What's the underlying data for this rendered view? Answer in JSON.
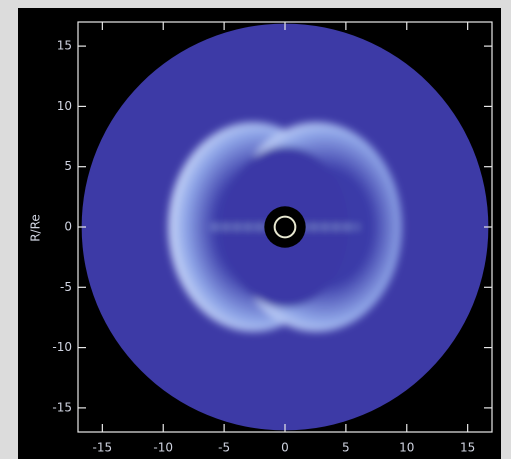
{
  "chart_data": {
    "type": "image",
    "ylabel": "R/Re",
    "xlim": [
      -17,
      17
    ],
    "ylim": [
      -17,
      17
    ],
    "xticks": [
      -15,
      -10,
      -5,
      0,
      5,
      10,
      15
    ],
    "yticks": [
      -15,
      -10,
      -5,
      0,
      5,
      10,
      15
    ]
  }
}
